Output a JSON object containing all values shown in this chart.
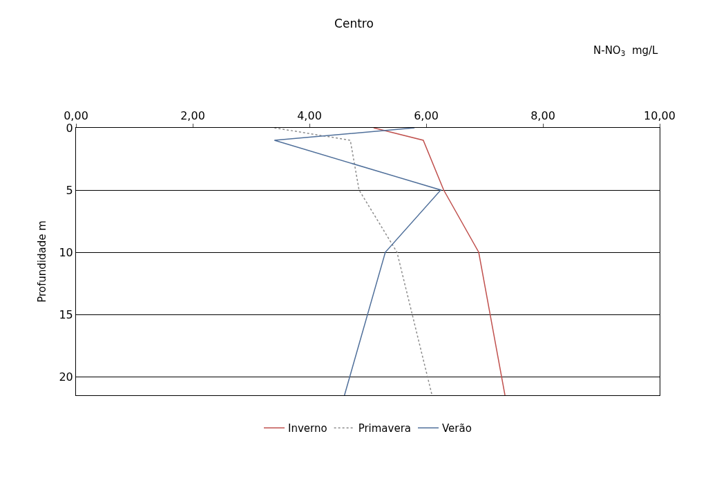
{
  "chart_data": {
    "type": "line",
    "title": "Centro",
    "xlabel": "N-NO$_{3}$  mg/L",
    "ylabel": "Profundidade m",
    "xlim": [
      0,
      10
    ],
    "xticks": [
      {
        "value": 0,
        "label": "0,00"
      },
      {
        "value": 2,
        "label": "2,00"
      },
      {
        "value": 4,
        "label": "4,00"
      },
      {
        "value": 6,
        "label": "6,00"
      },
      {
        "value": 8,
        "label": "8,00"
      },
      {
        "value": 10,
        "label": "10,00"
      }
    ],
    "ylim": [
      21.5,
      0
    ],
    "yticks": [
      0,
      5,
      10,
      15,
      20
    ],
    "grid": "y",
    "legend": "bottom",
    "marker": "none",
    "series": [
      {
        "name": "Inverno",
        "color": "#c0504d",
        "line_style": "solid",
        "x": [
          5.1,
          5.95,
          6.3,
          6.9,
          7.35
        ],
        "values": [
          0,
          1,
          5,
          10,
          21.5
        ]
      },
      {
        "name": "Primavera",
        "color": "#8c8c8c",
        "line_style": "dotted",
        "x": [
          3.4,
          4.7,
          4.85,
          5.5,
          6.1
        ],
        "values": [
          0,
          1,
          5,
          10,
          21.5
        ]
      },
      {
        "name": "Verão",
        "color": "#4f6f9a",
        "line_style": "solid",
        "x": [
          5.8,
          3.4,
          6.25,
          5.3,
          4.6
        ],
        "values": [
          0,
          1,
          5,
          10,
          21.5
        ]
      }
    ]
  }
}
